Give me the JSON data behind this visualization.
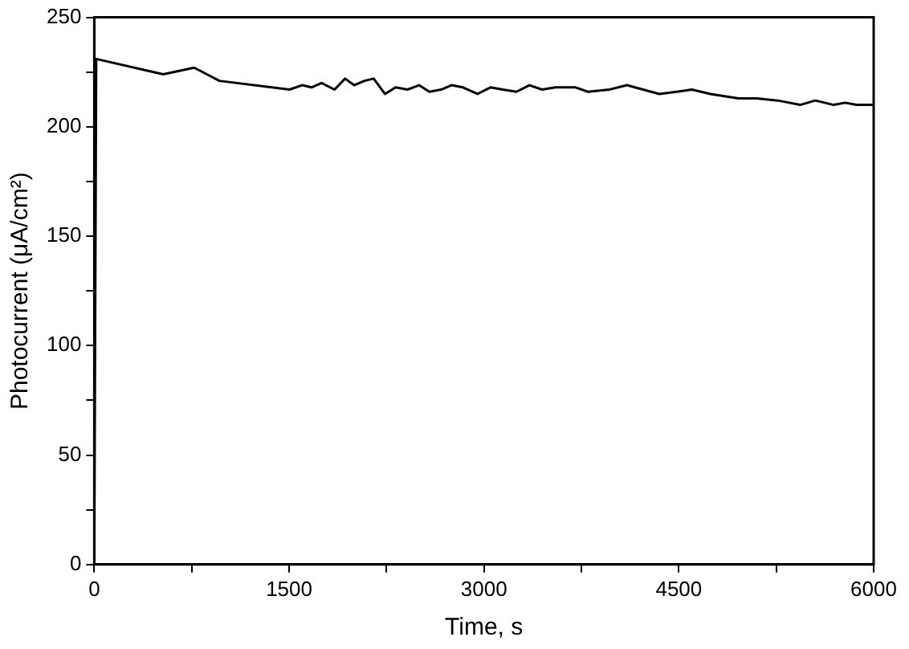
{
  "chart_data": {
    "type": "line",
    "xlabel": "Time, s",
    "ylabel": "Photocurrent (μA/cm²)",
    "xlim": [
      0,
      6000
    ],
    "xticks": [
      0,
      {
        "value": 750,
        "label": null
      },
      1500,
      {
        "value": 2250,
        "label": null
      },
      3000,
      {
        "value": 3750,
        "label": null
      },
      4500,
      {
        "value": 5250,
        "label": null
      },
      6000
    ],
    "ylim": [
      0,
      250
    ],
    "yticks": [
      0,
      {
        "value": 25,
        "label": null
      },
      50,
      {
        "value": 75,
        "label": null
      },
      100,
      {
        "value": 125,
        "label": null
      },
      150,
      {
        "value": 175,
        "label": null
      },
      200,
      {
        "value": 225,
        "label": null
      },
      250
    ],
    "grid": false,
    "legend": false,
    "marker": "none",
    "line_style": "solid",
    "series": [
      {
        "color": "#000000",
        "x": [
          0,
          15,
          531,
          769,
          963,
          1503,
          1600,
          1672,
          1750,
          1850,
          1931,
          2000,
          2080,
          2151,
          2238,
          2320,
          2411,
          2500,
          2580,
          2670,
          2750,
          2838,
          2950,
          3050,
          3145,
          3250,
          3350,
          3447,
          3550,
          3706,
          3800,
          3966,
          4100,
          4225,
          4350,
          4484,
          4600,
          4743,
          4850,
          4960,
          5100,
          5262,
          5350,
          5434,
          5550,
          5693,
          5780,
          5867,
          6000
        ],
        "values": [
          0,
          231,
          224,
          227,
          221,
          217,
          219,
          218,
          220,
          217,
          222,
          219,
          221,
          222,
          215,
          218,
          217,
          219,
          216,
          217,
          219,
          218,
          215,
          218,
          217,
          216,
          219,
          217,
          218,
          218,
          216,
          217,
          219,
          217,
          215,
          216,
          217,
          215,
          214,
          213,
          213,
          212,
          211,
          210,
          212,
          210,
          211,
          210,
          210
        ]
      }
    ]
  }
}
